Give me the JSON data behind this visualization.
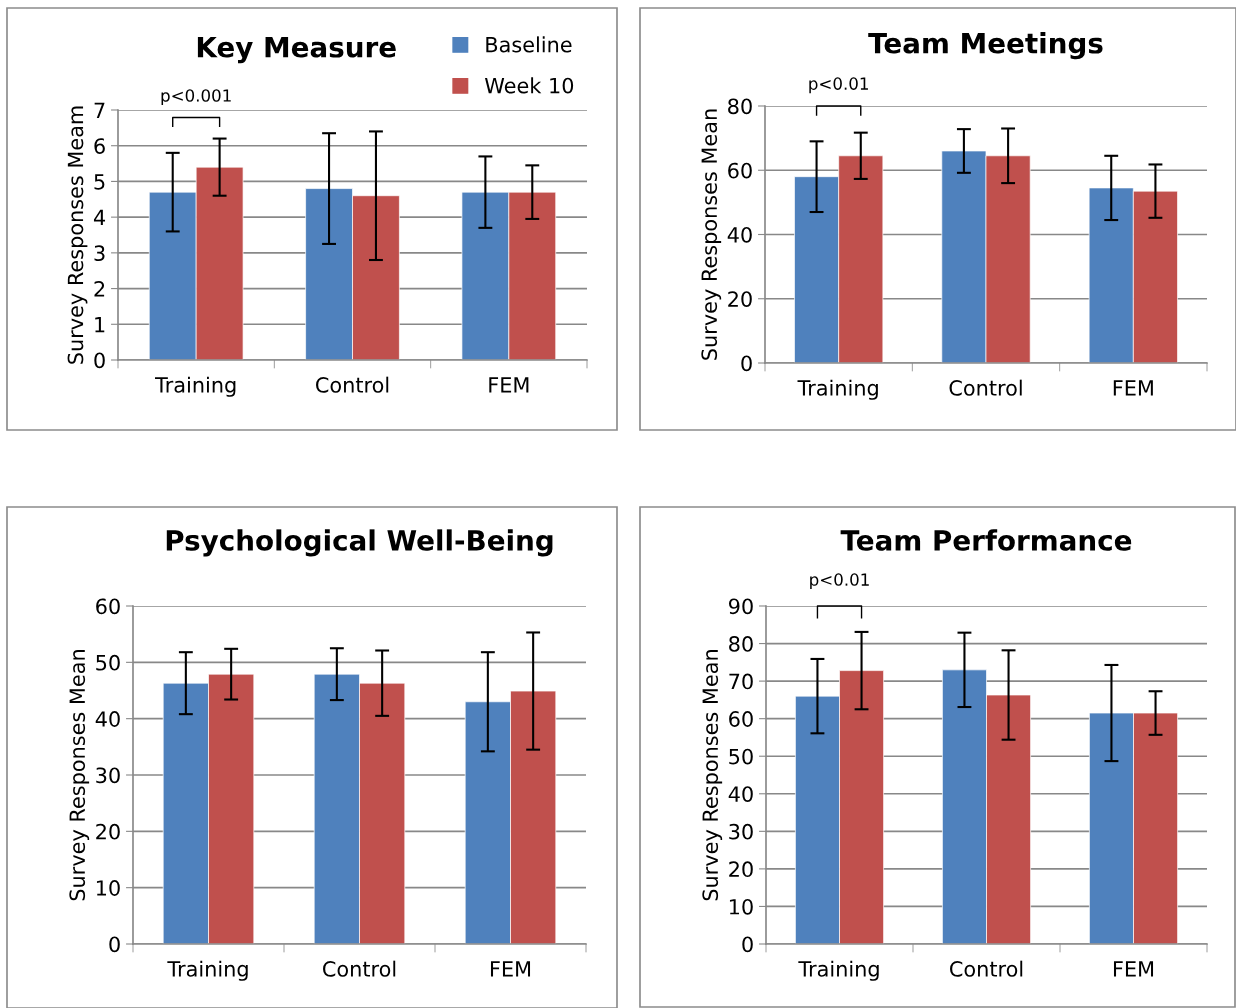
{
  "chart_data": [
    {
      "type": "bar",
      "title": "Key Measure",
      "ylabel": "Survey Responses Meam",
      "categories": [
        "Training",
        "Control",
        "FEM"
      ],
      "ylim": [
        0,
        7
      ],
      "yticks": [
        0,
        1,
        2,
        3,
        4,
        5,
        6,
        7
      ],
      "grid": "y",
      "legend": "top right",
      "annotations": [
        "p<0.001"
      ],
      "series": [
        {
          "name": "Baseline",
          "color": "#4f81bd",
          "values": [
            4.7,
            4.8,
            4.7
          ],
          "errors": [
            1.1,
            1.55,
            1.0
          ]
        },
        {
          "name": "Week 10",
          "color": "#c0504d",
          "values": [
            5.4,
            4.6,
            4.7
          ],
          "errors": [
            0.8,
            1.8,
            0.75
          ]
        }
      ]
    },
    {
      "type": "bar",
      "title": "Team Meetings",
      "ylabel": "Survey Responses Mean",
      "categories": [
        "Training",
        "Control",
        "FEM"
      ],
      "ylim": [
        0,
        80
      ],
      "yticks": [
        0,
        20,
        40,
        60,
        80
      ],
      "grid": "y",
      "annotations": [
        "p<0.01"
      ],
      "series": [
        {
          "color": "#4f81bd",
          "values": [
            58,
            66,
            54.5
          ],
          "errors": [
            11,
            6.8,
            10
          ]
        },
        {
          "color": "#c0504d",
          "values": [
            64.5,
            64.5,
            53.5
          ],
          "errors": [
            7.2,
            8.5,
            8.3
          ]
        }
      ]
    },
    {
      "type": "bar",
      "title": "Psychological Well-Being",
      "ylabel": "Survey Responses Mean",
      "categories": [
        "Training",
        "Control",
        "FEM"
      ],
      "ylim": [
        0,
        60
      ],
      "yticks": [
        0,
        10,
        20,
        30,
        40,
        50,
        60
      ],
      "grid": "y",
      "series": [
        {
          "color": "#4f81bd",
          "values": [
            46.3,
            47.9,
            43
          ],
          "errors": [
            5.5,
            4.6,
            8.8
          ]
        },
        {
          "color": "#c0504d",
          "values": [
            47.9,
            46.3,
            44.9
          ],
          "errors": [
            4.5,
            5.8,
            10.4
          ]
        }
      ]
    },
    {
      "type": "bar",
      "title": "Team Performance",
      "ylabel": "Survey Responses Mean",
      "categories": [
        "Training",
        "Control",
        "FEM"
      ],
      "ylim": [
        0,
        90
      ],
      "yticks": [
        0,
        10,
        20,
        30,
        40,
        50,
        60,
        70,
        80,
        90
      ],
      "grid": "y",
      "annotations": [
        "p<0.01"
      ],
      "series": [
        {
          "color": "#4f81bd",
          "values": [
            66,
            73,
            61.5
          ],
          "errors": [
            9.9,
            9.9,
            12.8
          ]
        },
        {
          "color": "#c0504d",
          "values": [
            72.8,
            66.3,
            61.5
          ],
          "errors": [
            10.3,
            11.9,
            5.8
          ]
        }
      ]
    }
  ]
}
